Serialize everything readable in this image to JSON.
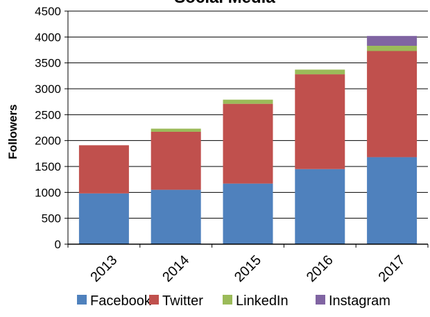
{
  "chart_data": {
    "type": "bar",
    "stacked": true,
    "title": "Social Media",
    "xlabel": "",
    "ylabel": "Followers",
    "ylim": [
      0,
      4500
    ],
    "yticks": [
      0,
      500,
      1000,
      1500,
      2000,
      2500,
      3000,
      3500,
      4000,
      4500
    ],
    "grid": true,
    "legend_position": "bottom",
    "categories": [
      "2013",
      "2014",
      "2015",
      "2016",
      "2017"
    ],
    "series": [
      {
        "name": "Facebook",
        "color": "#4F81BD",
        "values": [
          980,
          1050,
          1170,
          1450,
          1680
        ]
      },
      {
        "name": "Twitter",
        "color": "#C0504D",
        "values": [
          930,
          1120,
          1540,
          1830,
          2050
        ]
      },
      {
        "name": "LinkedIn",
        "color": "#9BBB59",
        "values": [
          0,
          60,
          80,
          90,
          100
        ]
      },
      {
        "name": "Instagram",
        "color": "#8064A2",
        "values": [
          0,
          0,
          0,
          0,
          190
        ]
      }
    ]
  }
}
